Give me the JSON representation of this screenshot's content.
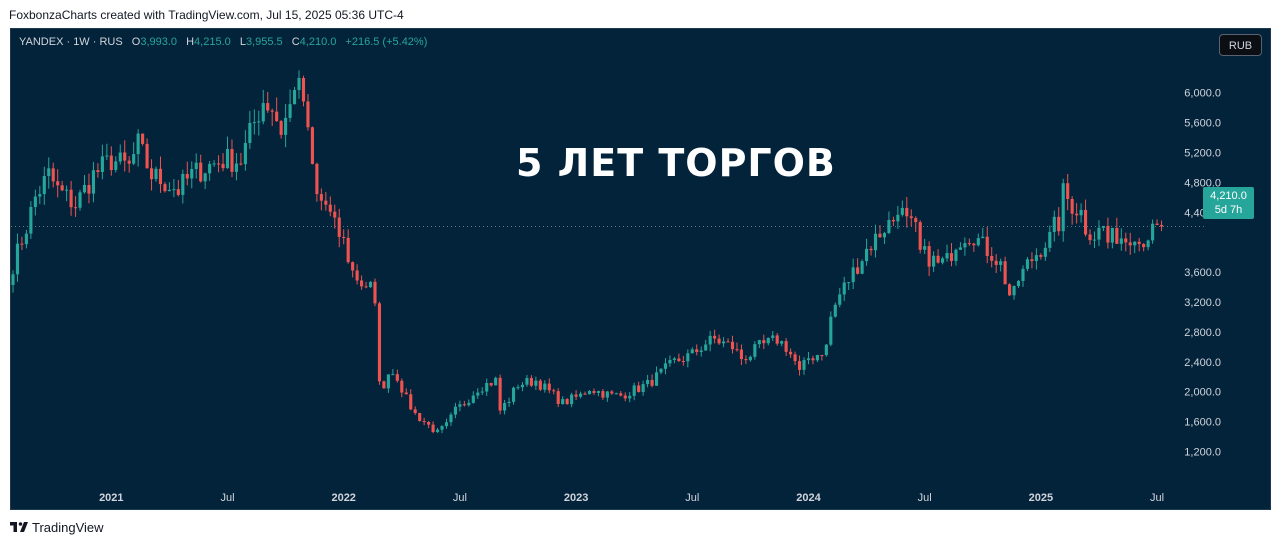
{
  "header": {
    "credit": "FoxbonzaCharts created with TradingView.com, Jul 15, 2025 05:36 UTC-4"
  },
  "legend": {
    "symbol": "YANDEX · 1W · RUS",
    "open_label": "O",
    "open": "3,993.0",
    "high_label": "H",
    "high": "4,215.0",
    "low_label": "L",
    "low": "3,955.5",
    "close_label": "C",
    "close": "4,210.0",
    "change": "+216.5 (+5.42%)"
  },
  "currency_button": "RUB",
  "last_price": {
    "price": "4,210.0",
    "countdown": "5d 7h"
  },
  "overlay_title": "5 ЛЕТ ТОРГОВ",
  "footer": {
    "brand": "TradingView"
  },
  "colors": {
    "background": "#03233a",
    "up": "#26a69a",
    "down": "#ef5350",
    "axis_text": "#d1d4dc"
  },
  "chart_data": {
    "type": "candlestick",
    "interval": "1W",
    "ylim": [
      900,
      6450
    ],
    "last_price": 4210,
    "y_ticks": [
      "1,200.0",
      "1,600.0",
      "2,000.0",
      "2,400.0",
      "2,800.0",
      "3,200.0",
      "3,600.0",
      "4,400.0",
      "4,800.0",
      "5,200.0",
      "5,600.0",
      "6,000.0"
    ],
    "y_tick_values": [
      1200,
      1600,
      2000,
      2400,
      2800,
      3200,
      3600,
      4400,
      4800,
      5200,
      5600,
      6000
    ],
    "x_ticks": [
      "2021",
      "Jul",
      "2022",
      "Jul",
      "2023",
      "Jul",
      "2024",
      "Jul",
      "2025",
      "Jul"
    ],
    "x_tick_bold": [
      true,
      false,
      true,
      false,
      true,
      false,
      true,
      false,
      true,
      false
    ],
    "x_tick_week_index": [
      22,
      48,
      74,
      100,
      126,
      152,
      178,
      204,
      230,
      256
    ],
    "path": [
      [
        0,
        3700
      ],
      [
        3,
        4200
      ],
      [
        5,
        4600
      ],
      [
        8,
        4900
      ],
      [
        10,
        4700
      ],
      [
        14,
        4500
      ],
      [
        18,
        4900
      ],
      [
        22,
        5100
      ],
      [
        26,
        5000
      ],
      [
        28,
        5300
      ],
      [
        31,
        4900
      ],
      [
        34,
        4800
      ],
      [
        37,
        4700
      ],
      [
        40,
        4900
      ],
      [
        43,
        5000
      ],
      [
        47,
        5100
      ],
      [
        51,
        5100
      ],
      [
        54,
        5600
      ],
      [
        56,
        5900
      ],
      [
        58,
        5800
      ],
      [
        60,
        5500
      ],
      [
        62,
        5800
      ],
      [
        63,
        6150
      ],
      [
        65,
        5900
      ],
      [
        66,
        5400
      ],
      [
        67,
        5000
      ],
      [
        68,
        4600
      ],
      [
        70,
        4500
      ],
      [
        72,
        4200
      ],
      [
        74,
        4000
      ],
      [
        76,
        3600
      ],
      [
        78,
        3450
      ],
      [
        80,
        3400
      ],
      [
        81,
        3100
      ],
      [
        82,
        2200
      ],
      [
        83,
        2000
      ],
      [
        84,
        2300
      ],
      [
        86,
        2200
      ],
      [
        88,
        1900
      ],
      [
        90,
        1700
      ],
      [
        92,
        1600
      ],
      [
        94,
        1500
      ],
      [
        95,
        1450
      ],
      [
        97,
        1550
      ],
      [
        99,
        1750
      ],
      [
        101,
        1850
      ],
      [
        104,
        2050
      ],
      [
        106,
        2100
      ],
      [
        108,
        2150
      ],
      [
        109,
        1750
      ],
      [
        111,
        1900
      ],
      [
        113,
        2100
      ],
      [
        117,
        2150
      ],
      [
        119,
        2050
      ],
      [
        121,
        1950
      ],
      [
        123,
        1850
      ],
      [
        125,
        1900
      ],
      [
        127,
        1950
      ],
      [
        129,
        2050
      ],
      [
        131,
        2000
      ],
      [
        134,
        1950
      ],
      [
        136,
        1950
      ],
      [
        138,
        2000
      ],
      [
        140,
        2050
      ],
      [
        142,
        2100
      ],
      [
        144,
        2200
      ],
      [
        146,
        2300
      ],
      [
        148,
        2400
      ],
      [
        150,
        2450
      ],
      [
        152,
        2500
      ],
      [
        155,
        2650
      ],
      [
        157,
        2700
      ],
      [
        159,
        2650
      ],
      [
        161,
        2600
      ],
      [
        163,
        2450
      ],
      [
        165,
        2500
      ],
      [
        167,
        2600
      ],
      [
        169,
        2650
      ],
      [
        171,
        2700
      ],
      [
        173,
        2600
      ],
      [
        175,
        2400
      ],
      [
        176,
        2250
      ],
      [
        178,
        2450
      ],
      [
        180,
        2500
      ],
      [
        182,
        2600
      ],
      [
        183,
        3000
      ],
      [
        185,
        3300
      ],
      [
        187,
        3500
      ],
      [
        189,
        3700
      ],
      [
        191,
        3900
      ],
      [
        193,
        4050
      ],
      [
        195,
        4200
      ],
      [
        197,
        4300
      ],
      [
        198,
        4500
      ],
      [
        200,
        4250
      ],
      [
        202,
        4150
      ],
      [
        203,
        3850
      ],
      [
        205,
        3800
      ],
      [
        207,
        3700
      ],
      [
        209,
        3750
      ],
      [
        211,
        4000
      ],
      [
        213,
        4100
      ],
      [
        215,
        4100
      ],
      [
        217,
        3950
      ],
      [
        219,
        3850
      ],
      [
        221,
        3700
      ],
      [
        222,
        3500
      ],
      [
        223,
        3300
      ],
      [
        224,
        3300
      ],
      [
        225,
        3500
      ],
      [
        227,
        3700
      ],
      [
        229,
        3850
      ],
      [
        231,
        4000
      ],
      [
        232,
        4050
      ],
      [
        233,
        4200
      ],
      [
        234,
        4250
      ],
      [
        235,
        4650
      ],
      [
        237,
        4500
      ],
      [
        239,
        4400
      ],
      [
        240,
        4200
      ],
      [
        242,
        4100
      ],
      [
        244,
        4200
      ],
      [
        245,
        4000
      ],
      [
        247,
        4100
      ],
      [
        249,
        4050
      ],
      [
        251,
        4150
      ],
      [
        252,
        4000
      ],
      [
        254,
        4100
      ],
      [
        256,
        4150
      ],
      [
        257,
        4210
      ]
    ]
  }
}
